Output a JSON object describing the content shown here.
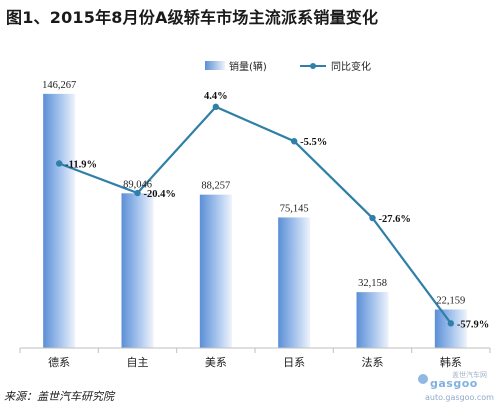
{
  "title": "图1、2015年8月份A级轿车市场主流派系销量变化",
  "source": "来源：盖世汽车研究院",
  "watermark": {
    "logo": "gasgoo",
    "url": "auto.gasgoo.com",
    "cn": "盖世汽车网"
  },
  "colors": {
    "bar_dark": "#5b8fd6",
    "bar_light": "#eef3fb",
    "line": "#2f7fa8",
    "axis": "#bfbfbf"
  },
  "chart_data": {
    "type": "bar",
    "categories": [
      "德系",
      "自主",
      "美系",
      "日系",
      "法系",
      "韩系"
    ],
    "series": [
      {
        "name": "销量(辆)",
        "type": "bar",
        "axis": "left",
        "values": [
          146267,
          89046,
          88257,
          75145,
          32158,
          22159
        ],
        "labels": [
          "146,267",
          "89,046",
          "88,257",
          "75,145",
          "32,158",
          "22,159"
        ]
      },
      {
        "name": "同比变化",
        "type": "line",
        "axis": "right",
        "values": [
          -11.9,
          -20.4,
          4.4,
          -5.5,
          -27.6,
          -57.9
        ],
        "labels": [
          "-11.9%",
          "-20.4%",
          "4.4%",
          "-5.5%",
          "-27.6%",
          "-57.9%"
        ]
      }
    ],
    "ylim_left": [
      0,
      160000
    ],
    "ylim_right": [
      -65,
      15
    ],
    "grid": false,
    "legend": "top-right"
  }
}
